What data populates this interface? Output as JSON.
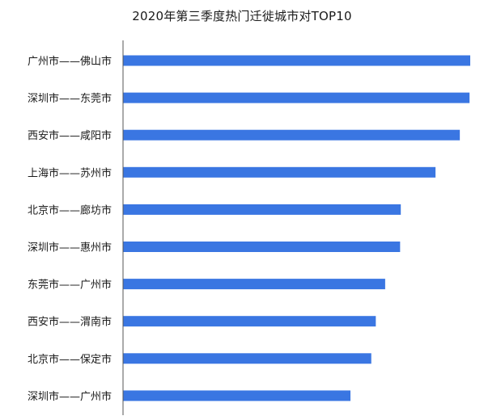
{
  "chart_data": {
    "type": "bar",
    "orientation": "horizontal",
    "title": "2020年第三季度热门迁徙城市对TOP10",
    "xlabel": "",
    "ylabel": "",
    "categories": [
      "广州市——佛山市",
      "深圳市——东莞市",
      "西安市——咸阳市",
      "上海市——苏州市",
      "北京市——廊坊市",
      "深圳市——惠州市",
      "东莞市——广州市",
      "西安市——渭南市",
      "北京市——保定市",
      "深圳市——广州市"
    ],
    "values": [
      100,
      99.8,
      97,
      90,
      80,
      79.8,
      75.5,
      72.8,
      71.5,
      65.5
    ],
    "xlim": [
      0,
      100
    ],
    "grid": false,
    "legend": "none",
    "bar_color": "#3a76e2",
    "axis_color": "#555555"
  }
}
